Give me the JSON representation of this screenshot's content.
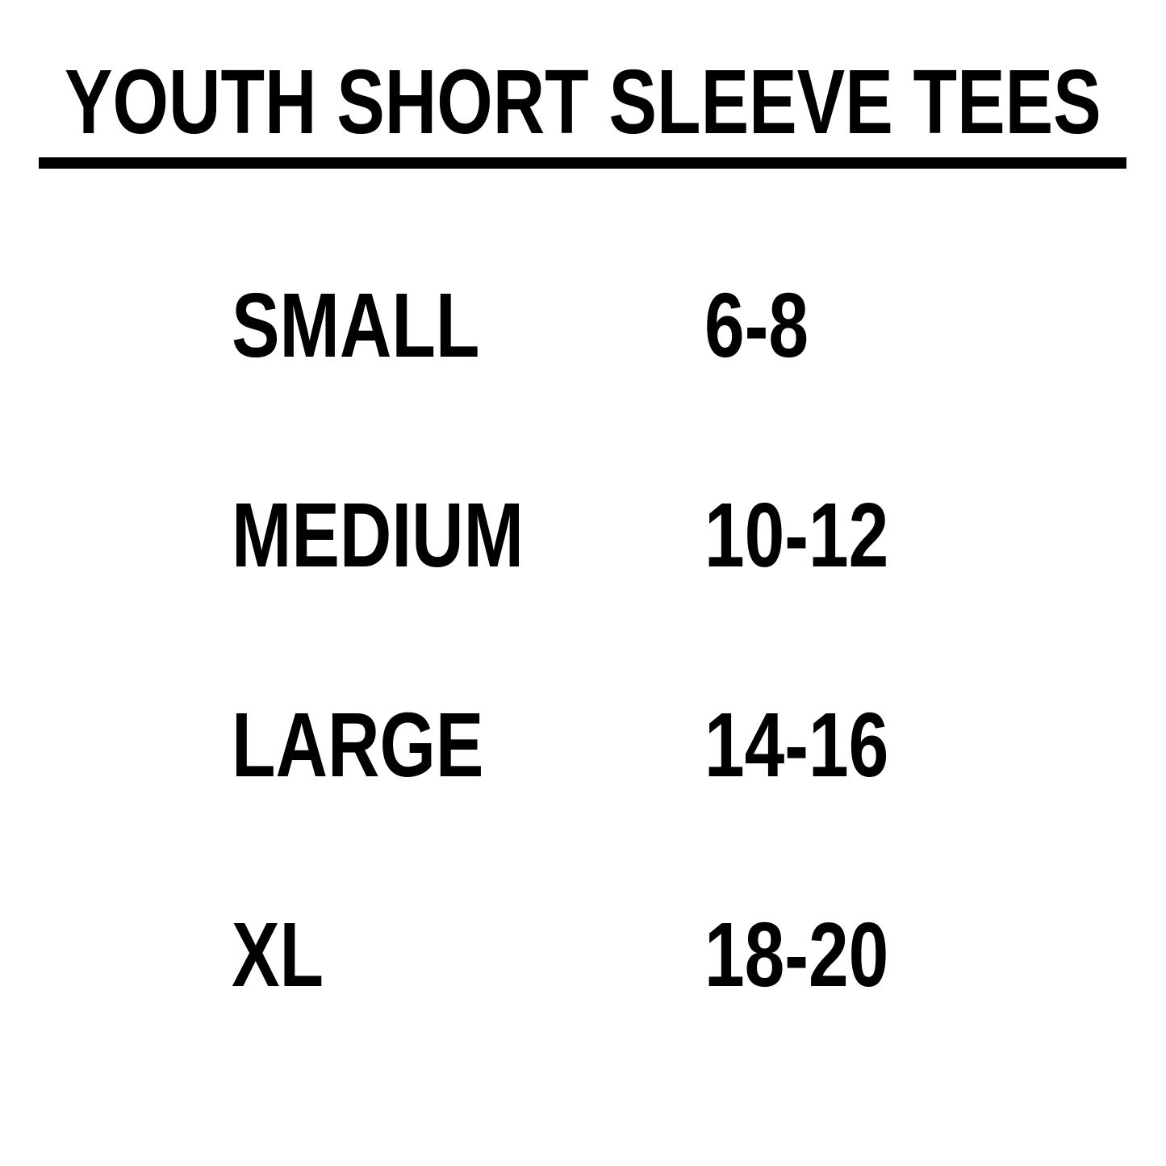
{
  "title": "YOUTH SHORT SLEEVE TEES",
  "rows": [
    {
      "size": "SMALL",
      "range": "6-8"
    },
    {
      "size": "MEDIUM",
      "range": "10-12"
    },
    {
      "size": "LARGE",
      "range": "14-16"
    },
    {
      "size": "XL",
      "range": "18-20"
    }
  ]
}
